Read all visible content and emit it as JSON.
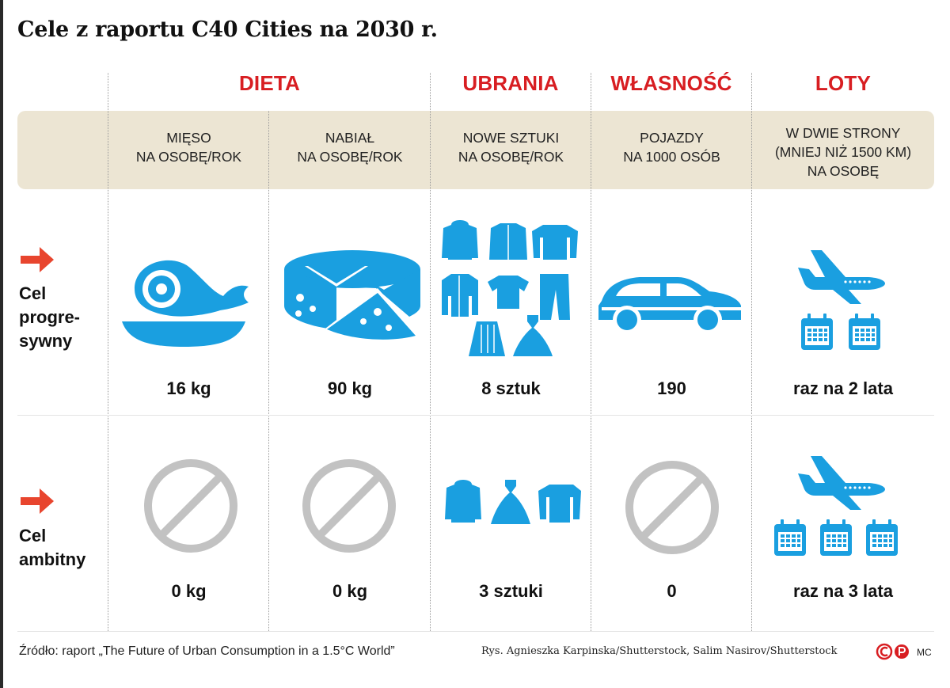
{
  "title": "Cele z raportu C40 Cities na 2030 r.",
  "categories": {
    "dieta": "DIETA",
    "ubrania": "UBRANIA",
    "wlasnosc": "WŁASNOŚĆ",
    "loty": "LOTY"
  },
  "columns": [
    {
      "header": "MIĘSO\nNA OSOBĘ/ROK",
      "progresywny": "16 kg",
      "ambitny": "0 kg",
      "icon": "ham-icon"
    },
    {
      "header": "NABIAŁ\nNA OSOBĘ/ROK",
      "progresywny": "90 kg",
      "ambitny": "0 kg",
      "icon": "cheese-icon"
    },
    {
      "header": "NOWE SZTUKI\nNA OSOBĘ/ROK",
      "progresywny": "8 sztuk",
      "ambitny": "3 sztuki",
      "icon": "clothes-icon"
    },
    {
      "header": "POJAZDY\nNA 1000 OSÓB",
      "progresywny": "190",
      "ambitny": "0",
      "icon": "car-icon"
    },
    {
      "header": "W DWIE STRONY\n(MNIEJ NIŻ 1500 KM)\nNA OSOBĘ",
      "progresywny": "raz na 2 lata",
      "ambitny": "raz na 3 lata",
      "icon": "airplane-icon"
    }
  ],
  "rows": {
    "progresywny_label": "Cel\nprogre-\nsywny",
    "ambitny_label": "Cel\nambitny"
  },
  "footer": {
    "source": "Źródło: raport „The Future of Urban Consumption in a 1.5°C World”",
    "credits": "Rys. Agnieszka Karpinska/Shutterstock, Salim Nasirov/Shutterstock",
    "author": "MC"
  },
  "colors": {
    "accent": "#d81e22",
    "icon_blue": "#1a9fe0",
    "band": "#ece5d3",
    "none_symbol": "#c2c2c2"
  }
}
